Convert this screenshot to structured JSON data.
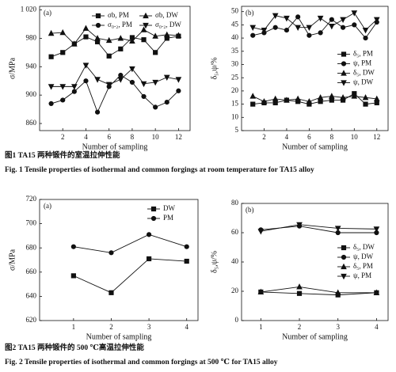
{
  "chart_data": [
    {
      "type": "line",
      "panel": "(a)",
      "ylabel": "σ/MPa",
      "xlabel": "Number of sampling",
      "x": [
        1,
        2,
        3,
        4,
        5,
        6,
        7,
        8,
        9,
        10,
        11,
        12
      ],
      "xlim": [
        0,
        13
      ],
      "xticks": [
        2,
        4,
        6,
        8,
        10,
        12
      ],
      "ylim": [
        850,
        1025
      ],
      "yticks": [
        860,
        900,
        940,
        980,
        {
          "value": 1020,
          "label": "1 020"
        }
      ],
      "legend_loc": "upper right",
      "legend_columns": 2,
      "series": [
        {
          "name": "σb, PM",
          "color": "#111",
          "marker": "square",
          "values": [
            954,
            960,
            972,
            982,
            975,
            955,
            965,
            981,
            978,
            960,
            980,
            983
          ]
        },
        {
          "name": "σb, DW",
          "color": "#111",
          "marker": "triangle-up",
          "values": [
            987,
            988,
            972,
            994,
            980,
            977,
            980,
            976,
            992,
            983,
            985,
            984
          ]
        },
        {
          "name": "σ₀.₂, PM",
          "color": "#111",
          "marker": "circle",
          "values": [
            888,
            893,
            905,
            920,
            876,
            912,
            928,
            918,
            898,
            883,
            890,
            906
          ]
        },
        {
          "name": "σ₀.₂, DW",
          "color": "#111",
          "marker": "triangle-down",
          "values": [
            912,
            912,
            912,
            942,
            922,
            915,
            922,
            937,
            916,
            918,
            925,
            922
          ]
        }
      ]
    },
    {
      "type": "line",
      "panel": "(b)",
      "ylabel": "δ₅,ψ/%",
      "xlabel": "Number of sampling",
      "x": [
        1,
        2,
        3,
        4,
        5,
        6,
        7,
        8,
        9,
        10,
        11,
        12
      ],
      "xlim": [
        0,
        13
      ],
      "xticks": [
        2,
        4,
        6,
        8,
        10,
        12
      ],
      "ylim": [
        5,
        52
      ],
      "yticks": [
        5,
        10,
        15,
        20,
        25,
        30,
        35,
        40,
        45,
        50
      ],
      "legend_loc": "center right",
      "legend_columns": 1,
      "series": [
        {
          "name": "δ₅, PM",
          "color": "#111",
          "marker": "square",
          "values": [
            15,
            15.5,
            15.5,
            16.5,
            16,
            15,
            16,
            16.5,
            16.5,
            19,
            15,
            15.5
          ]
        },
        {
          "name": "ψ, PM",
          "color": "#111",
          "marker": "circle",
          "values": [
            41,
            42,
            44,
            43,
            48,
            41,
            42,
            47,
            44,
            45,
            40,
            46
          ]
        },
        {
          "name": "δ₅, DW",
          "color": "#111",
          "marker": "triangle-up",
          "values": [
            18,
            16,
            17,
            16.5,
            17,
            16,
            17.5,
            18,
            17.5,
            18,
            17.5,
            17
          ]
        },
        {
          "name": "ψ, DW",
          "color": "#111",
          "marker": "triangle-down",
          "values": [
            44,
            43,
            48.5,
            47.5,
            44,
            44,
            47.5,
            44.5,
            47,
            49.5,
            43,
            47
          ]
        }
      ]
    },
    {
      "type": "line",
      "panel": "(a)",
      "ylabel": "σ/MPa",
      "xlabel": "Number of sampling",
      "x": [
        1,
        2,
        3,
        4
      ],
      "xlim": [
        0.1,
        4.3
      ],
      "xticks": [
        1,
        2,
        3,
        4
      ],
      "ylim": [
        620,
        720
      ],
      "yticks": [
        620,
        640,
        660,
        680,
        700,
        720
      ],
      "legend_loc": "upper right",
      "legend_columns": 1,
      "series": [
        {
          "name": "DW",
          "color": "#111",
          "marker": "square",
          "values": [
            657,
            643,
            671,
            669
          ]
        },
        {
          "name": "PM",
          "color": "#111",
          "marker": "circle",
          "values": [
            681,
            676,
            691,
            681
          ]
        }
      ]
    },
    {
      "type": "line",
      "panel": "(b)",
      "ylabel": "δ₅,ψ/%",
      "xlabel": "Number of sampling",
      "x": [
        1,
        2,
        3,
        4
      ],
      "xlim": [
        0.5,
        4.3
      ],
      "xticks": [
        1,
        2,
        3,
        4
      ],
      "ylim": [
        0,
        80
      ],
      "yticks": [
        0,
        20,
        40,
        60,
        80
      ],
      "legend_loc": "center right",
      "legend_columns": 1,
      "series": [
        {
          "name": "δ₅, DW",
          "color": "#111",
          "marker": "square",
          "values": [
            19.5,
            18.5,
            17.5,
            19
          ]
        },
        {
          "name": "ψ, DW",
          "color": "#111",
          "marker": "circle",
          "values": [
            62,
            64.5,
            60,
            60
          ]
        },
        {
          "name": "δ₅, PM",
          "color": "#111",
          "marker": "triangle-up",
          "values": [
            19.5,
            23,
            19,
            19
          ]
        },
        {
          "name": "ψ, PM",
          "color": "#111",
          "marker": "triangle-down",
          "values": [
            61,
            65.5,
            63,
            62.5
          ]
        }
      ]
    }
  ],
  "captions": [
    {
      "cn": "图1 TA15 两种锻件的室温拉伸性能",
      "en": "Fig. 1 Tensile properties of isothermal and common forgings at room temperature for TA15 alloy"
    },
    {
      "cn": "图2 TA15 两种锻件的 500 ℃高温拉伸性能",
      "en": "Fig. 2 Tensile properties of isothermal and common forgings at 500 ℃ for TA15 alloy"
    }
  ]
}
